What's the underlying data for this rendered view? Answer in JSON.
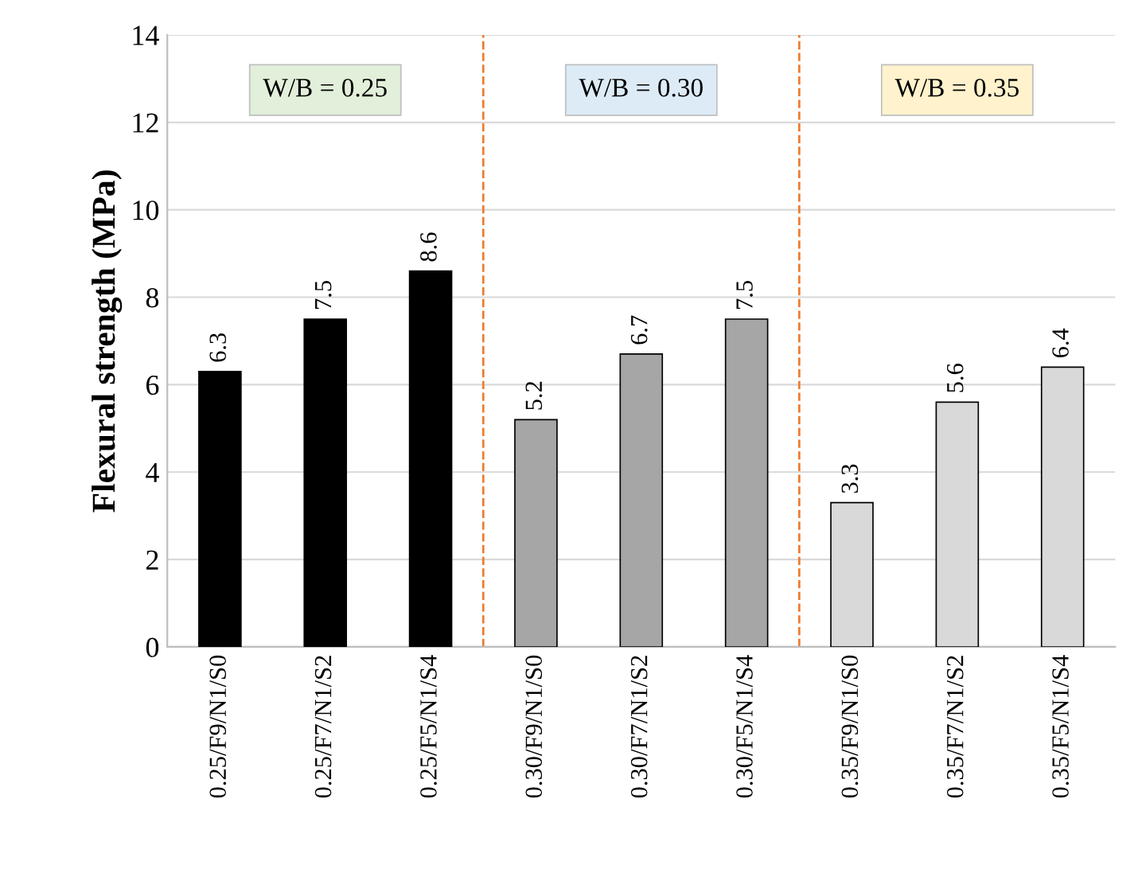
{
  "chart_data": {
    "type": "bar",
    "ylabel": "Flexural strength (MPa)",
    "categories": [
      "0.25/F9/N1/S0",
      "0.25/F7/N1/S2",
      "0.25/F5/N1/S4",
      "0.30/F9/N1/S0",
      "0.30/F7/N1/S2",
      "0.30/F5/N1/S4",
      "0.35/F9/N1/S0",
      "0.35/F7/N1/S2",
      "0.35/F5/N1/S4"
    ],
    "values": [
      6.3,
      7.5,
      8.6,
      5.2,
      6.7,
      7.5,
      3.3,
      5.6,
      6.4
    ],
    "colors": [
      "#000000",
      "#000000",
      "#000000",
      "#a6a6a6",
      "#a6a6a6",
      "#a6a6a6",
      "#d9d9d9",
      "#d9d9d9",
      "#d9d9d9"
    ],
    "data_labels": true,
    "ylim": [
      0,
      14
    ],
    "yticks": [
      0,
      2,
      4,
      6,
      8,
      10,
      12,
      14
    ],
    "grid": "y",
    "legend": false,
    "annotations": [
      "W/B = 0.25",
      "W/B = 0.30",
      "W/B = 0.35"
    ]
  }
}
